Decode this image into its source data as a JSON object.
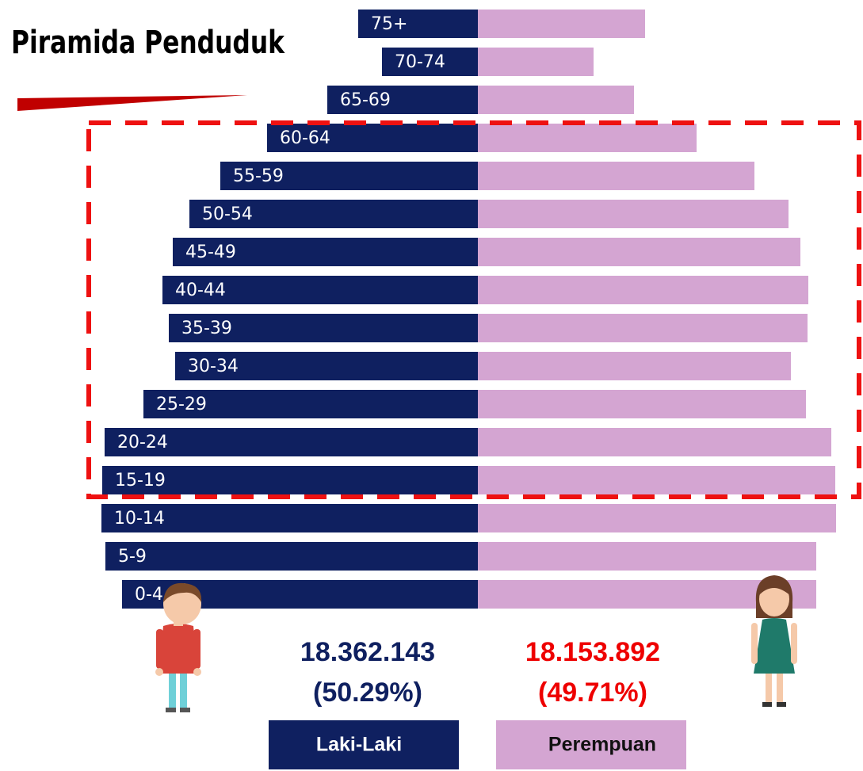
{
  "chart_data": {
    "type": "pyramid",
    "title": "Piramida Penduduk",
    "categories": [
      "75+",
      "70-74",
      "65-69",
      "60-64",
      "55-59",
      "50-54",
      "45-49",
      "40-44",
      "35-39",
      "30-34",
      "25-29",
      "20-24",
      "15-19",
      "10-14",
      "5-9",
      "0-4"
    ],
    "series": [
      {
        "name": "Laki-Laki",
        "color": "#0f2060",
        "total": "18.362.143",
        "share": "(50.29%)",
        "total_color": "#0f2060",
        "values": [
          151,
          121,
          190,
          266,
          325,
          364,
          385,
          398,
          390,
          382,
          422,
          471,
          474,
          475,
          470,
          449
        ]
      },
      {
        "name": "Perempuan",
        "color": "#d4a5d2",
        "total": "18.153.892",
        "share": "(49.71%)",
        "total_color": "#ee0000",
        "values": [
          211,
          146,
          197,
          276,
          349,
          392,
          407,
          417,
          416,
          395,
          414,
          446,
          451,
          452,
          427,
          427
        ]
      }
    ]
  }
}
